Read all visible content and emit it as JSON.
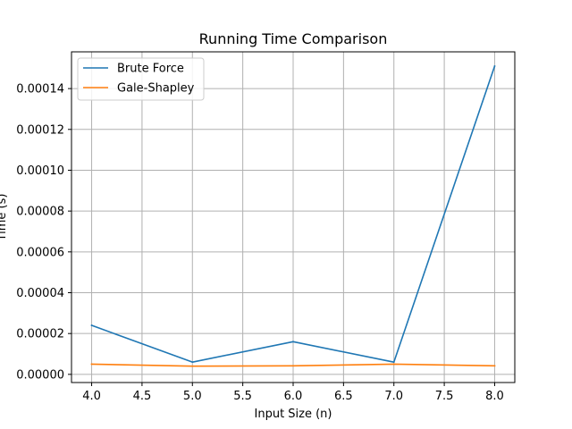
{
  "chart_data": {
    "type": "line",
    "title": "Running Time Comparison",
    "xlabel": "Input Size (n)",
    "ylabel": "Time (s)",
    "xlim": [
      3.8,
      8.2
    ],
    "ylim": [
      -4e-06,
      0.000158
    ],
    "x_ticks": [
      "4.0",
      "4.5",
      "5.0",
      "5.5",
      "6.0",
      "6.5",
      "7.0",
      "7.5",
      "8.0"
    ],
    "x_tick_values": [
      4.0,
      4.5,
      5.0,
      5.5,
      6.0,
      6.5,
      7.0,
      7.5,
      8.0
    ],
    "y_ticks": [
      "0.00000",
      "0.00002",
      "0.00004",
      "0.00006",
      "0.00008",
      "0.00010",
      "0.00012",
      "0.00014"
    ],
    "y_tick_values": [
      0,
      2e-05,
      4e-05,
      6e-05,
      8e-05,
      0.0001,
      0.00012,
      0.00014
    ],
    "grid": true,
    "legend_position": "top-left",
    "x": [
      4,
      5,
      6,
      7,
      8
    ],
    "series": [
      {
        "name": "Brute Force",
        "color": "#1f77b4",
        "values": [
          2.4e-05,
          6e-06,
          1.6e-05,
          6e-06,
          0.000151
        ]
      },
      {
        "name": "Gale-Shapley",
        "color": "#ff7f0e",
        "values": [
          5e-06,
          4e-06,
          4.2e-06,
          5e-06,
          4.2e-06
        ]
      }
    ]
  }
}
